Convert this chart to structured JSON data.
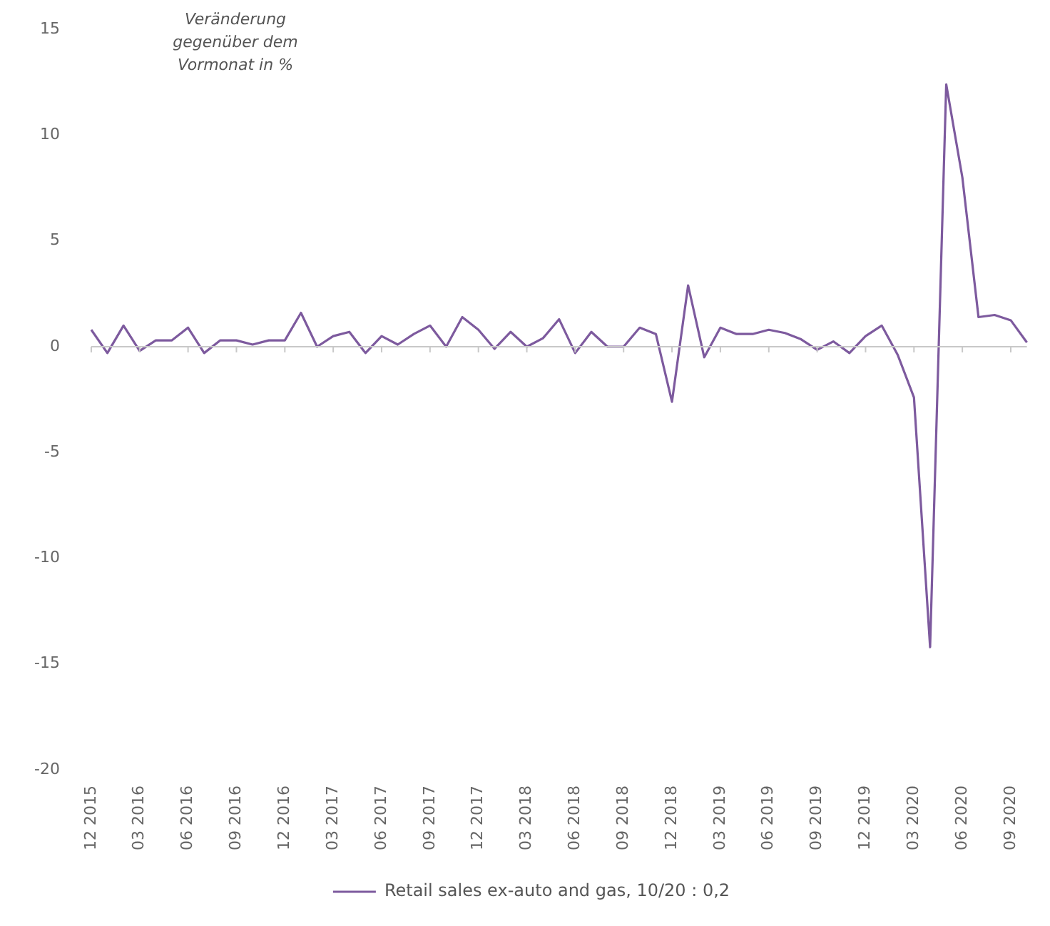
{
  "chart_data": {
    "type": "line",
    "ylabel": "Veränderung gegenüber dem Vormonat in %",
    "categories": [
      "12 2015",
      null,
      null,
      "03 2016",
      null,
      null,
      "06 2016",
      null,
      null,
      "09 2016",
      null,
      null,
      "12 2016",
      null,
      null,
      "03 2017",
      null,
      null,
      "06 2017",
      null,
      null,
      "09 2017",
      null,
      null,
      "12 2017",
      null,
      null,
      "03 2018",
      null,
      null,
      "06 2018",
      null,
      null,
      "09 2018",
      null,
      null,
      "12 2018",
      null,
      null,
      "03 2019",
      null,
      null,
      "06 2019",
      null,
      null,
      "09 2019",
      null,
      null,
      "12 2019",
      null,
      null,
      "03 2020",
      null,
      null,
      "06 2020",
      null,
      null,
      "09 2020",
      null
    ],
    "series": [
      {
        "name": "Retail sales ex-auto and gas, 10/20 : 0,2",
        "color": "#7d5a9e",
        "values": [
          0.8,
          -0.3,
          1.0,
          -0.2,
          0.3,
          0.3,
          0.9,
          -0.3,
          0.3,
          0.3,
          0.1,
          0.3,
          0.3,
          1.6,
          0.0,
          0.5,
          0.7,
          -0.3,
          0.5,
          0.1,
          0.6,
          1.0,
          0.0,
          1.4,
          0.8,
          -0.1,
          0.7,
          0.0,
          0.4,
          1.3,
          -0.3,
          0.7,
          0.0,
          0.0,
          0.9,
          0.6,
          -2.6,
          2.9,
          -0.5,
          0.9,
          0.6,
          0.6,
          0.8,
          0.65,
          0.35,
          -0.15,
          0.25,
          -0.3,
          0.5,
          1.0,
          -0.4,
          -2.4,
          -14.2,
          12.4,
          8.0,
          1.4,
          1.5,
          1.25,
          0.2
        ]
      }
    ],
    "ylim": [
      -20,
      15
    ],
    "yticks": [
      -20,
      -15,
      -10,
      -5,
      0,
      5,
      10,
      15
    ],
    "grid": false,
    "ref_lines": [
      {
        "axis": "y",
        "value": 0,
        "color": "#c8c8c8"
      }
    ],
    "legend": "bottom",
    "marker": "none",
    "line_style": "solid"
  }
}
